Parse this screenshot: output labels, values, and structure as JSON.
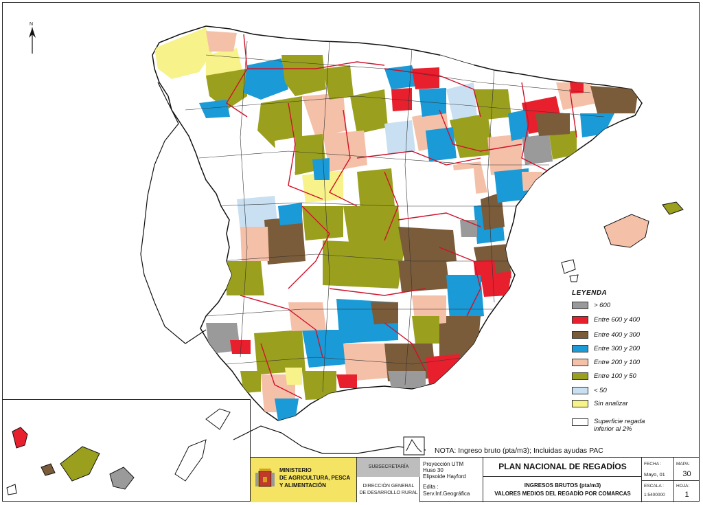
{
  "legend": {
    "title": "LEYENDA",
    "items": [
      {
        "label": "> 600",
        "color": "#9a9a9a"
      },
      {
        "label": "Entre 600 y 400",
        "color": "#e8202e"
      },
      {
        "label": "Entre 400 y 300",
        "color": "#7a5b3a"
      },
      {
        "label": "Entre 300 y 200",
        "color": "#1a9ad6"
      },
      {
        "label": "Entre 200 y 100",
        "color": "#f5c0a8"
      },
      {
        "label": "Entre 100 y 50",
        "color": "#9aa01e"
      },
      {
        "label": "< 50",
        "color": "#c8e0f2"
      },
      {
        "label": "Sin analizar",
        "color": "#f7f28a"
      }
    ],
    "note_line1": "Superficie regada",
    "note_line2": "inferior al 2%"
  },
  "nota": "NOTA: Ingreso bruto (pta/m3); Incluidas ayudas PAC",
  "title_block": {
    "ministry_line1": "MINISTERIO",
    "ministry_line2": "DE AGRICULTURA, PESCA",
    "ministry_line3": "Y ALIMENTACIÓN",
    "subsecretaria": "SUBSECRETARÍA",
    "direccion_line1": "DIRECCIÓN GENERAL",
    "direccion_line2": "DE DESARROLLO RURAL",
    "projection_line1": "Proyección UTM",
    "projection_line2": "Huso 30",
    "projection_line3": "Elipsoide Hayford",
    "edita_label": "Edita :",
    "edita_value": "Serv.Inf.Geográfica",
    "plan_title": "PLAN NACIONAL DE REGADÍOS",
    "subtitle1": "INGRESOS BRUTOS (pta/m3)",
    "subtitle2": "VALORES MEDIOS DEL REGADÍO POR COMARCAS",
    "fecha_label": "FECHA :",
    "fecha_value": "Mayo, 01",
    "escala_label": "ESCALA :",
    "escala_value": "1:5400000",
    "mapa_label": "MAPA:",
    "mapa_value": "30",
    "hoja_label": "HOJA:",
    "hoja_value": "1"
  },
  "map_colors": {
    "grey": "#9a9a9a",
    "red": "#e8202e",
    "brown": "#7a5b3a",
    "blue": "#1a9ad6",
    "salmon": "#f5c0a8",
    "olive": "#9aa01e",
    "lightblue": "#c8e0f2",
    "yellow": "#f7f28a",
    "border_red": "#d0102a"
  }
}
